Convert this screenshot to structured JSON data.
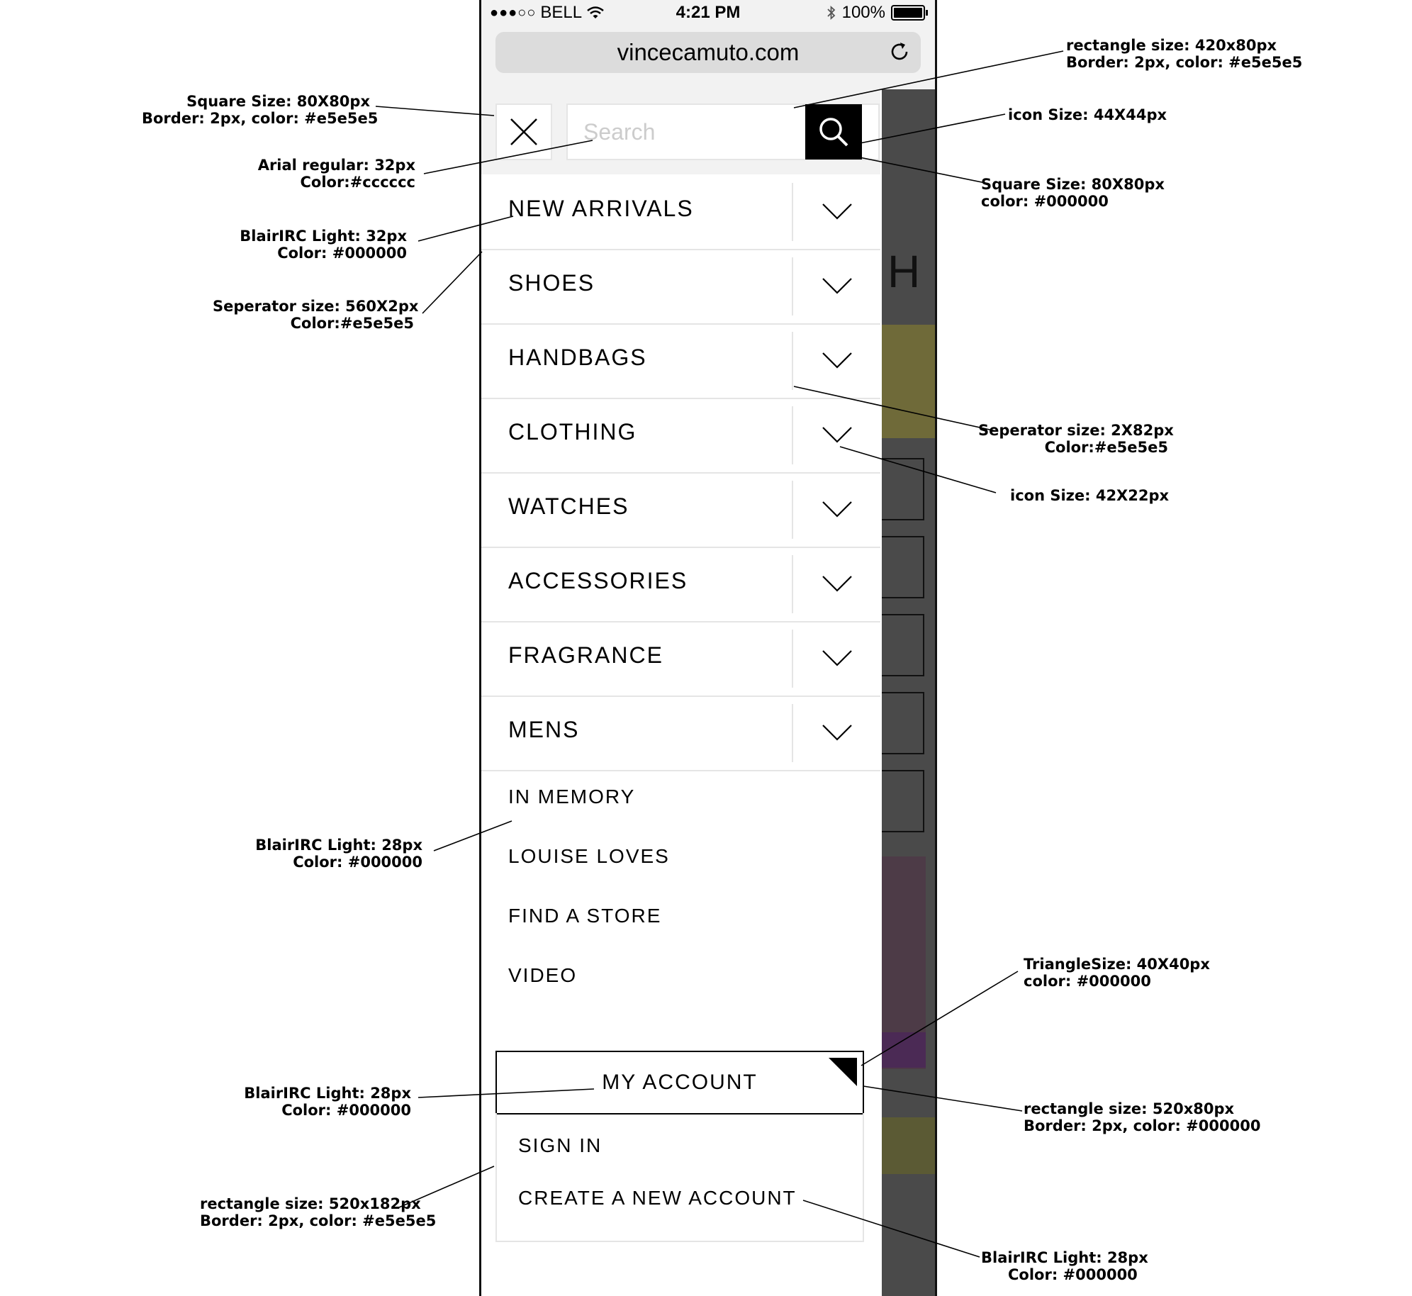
{
  "status_bar": {
    "signal": "●●●○○",
    "carrier": "BELL",
    "time": "4:21 PM",
    "battery": "100%"
  },
  "browser": {
    "url": "vincecamuto.com"
  },
  "search": {
    "placeholder": "Search"
  },
  "categories": [
    {
      "label": "New Arrivals"
    },
    {
      "label": "Shoes"
    },
    {
      "label": "Handbags"
    },
    {
      "label": "Clothing"
    },
    {
      "label": "Watches"
    },
    {
      "label": "Accessories"
    },
    {
      "label": "Fragrance"
    },
    {
      "label": "Mens"
    }
  ],
  "links": [
    "In Memory",
    "Louise Loves",
    "Find a Store",
    "Video"
  ],
  "account": {
    "title": "MY ACCOUNT",
    "sign_in": "Sign In",
    "create": "Create a New Account"
  },
  "background_page": {
    "letter": "H"
  },
  "colors": {
    "border": "#e5e5e5",
    "placeholder": "#cccccc",
    "black": "#000000"
  },
  "annotations": {
    "close_btn": [
      "Square Size: 80X80px",
      "Border: 2px, color: #e5e5e5"
    ],
    "search_placeholder": [
      "Arial regular: 32px",
      "Color:#cccccc"
    ],
    "category_font": [
      "BlairIRC Light: 32px",
      "Color: #000000"
    ],
    "separator_h": [
      "Seperator size: 560X2px",
      "Color:#e5e5e5"
    ],
    "search_rect": [
      "rectangle size: 420x80px",
      "Border: 2px, color: #e5e5e5"
    ],
    "search_icon": [
      "icon Size: 44X44px"
    ],
    "search_square": [
      "Square Size: 80X80px",
      "color: #000000"
    ],
    "separator_v": [
      "Seperator size: 2X82px",
      "Color:#e5e5e5"
    ],
    "chevron_icon": [
      "icon Size: 42X22px"
    ],
    "links_font": [
      "BlairIRC Light: 28px",
      "Color: #000000"
    ],
    "triangle": [
      "TriangleSize: 40X40px",
      "color: #000000"
    ],
    "account_font": [
      "BlairIRC Light: 28px",
      "Color: #000000"
    ],
    "account_rect": [
      "rectangle size: 520x80px",
      "Border: 2px, color: #000000"
    ],
    "drop_rect": [
      "rectangle size: 520x182px",
      "Border: 2px, color: #e5e5e5"
    ],
    "drop_font": [
      "BlairIRC Light: 28px",
      "Color: #000000"
    ]
  }
}
